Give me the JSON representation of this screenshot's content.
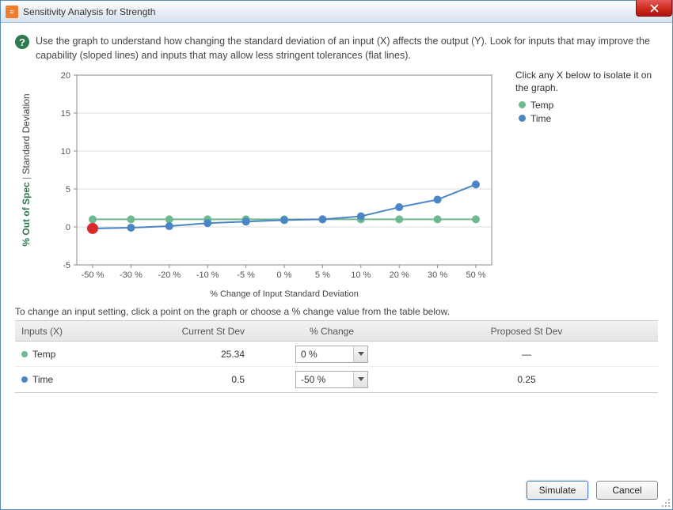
{
  "window": {
    "title": "Sensitivity Analysis for Strength"
  },
  "intro": "Use the graph to understand how changing the standard deviation of an input (X) affects the output (Y).  Look for inputs that may improve the capability (sloped lines) and inputs that may allow less stringent tolerances (flat lines).",
  "chart": {
    "type": "line",
    "x_categories": [
      "-50 %",
      "-30 %",
      "-20 %",
      "-10 %",
      "-5 %",
      "0 %",
      "5 %",
      "10 %",
      "20 %",
      "30 %",
      "50 %"
    ],
    "x_label": "% Change of Input Standard Deviation",
    "y_label_primary": "Standard Deviation",
    "y_label_secondary": "% Out of Spec",
    "ylim": [
      -5,
      20
    ],
    "ytick_step": 5,
    "series": [
      {
        "name": "Temp",
        "color": "#6fb98f",
        "marker_radius": 5,
        "values": [
          1.0,
          1.0,
          1.0,
          1.0,
          1.0,
          1.0,
          1.0,
          1.0,
          1.0,
          1.0,
          1.0
        ]
      },
      {
        "name": "Time",
        "color": "#4a86c5",
        "marker_radius": 5,
        "values": [
          -0.2,
          -0.1,
          0.1,
          0.5,
          0.7,
          0.9,
          1.0,
          1.4,
          2.6,
          3.6,
          5.6
        ]
      }
    ],
    "highlight": {
      "series": "Time",
      "index": 0,
      "color": "#d92b2b",
      "radius": 7
    },
    "background_color": "#ffffff",
    "grid_color": "#dddddd",
    "axis_color": "#888888",
    "tick_fontsize": 11,
    "label_fontsize": 12
  },
  "legend": {
    "title": "Click any X below to isolate it on the graph.",
    "items": [
      {
        "label": "Temp",
        "color": "#6fb98f"
      },
      {
        "label": "Time",
        "color": "#4a86c5"
      }
    ]
  },
  "table": {
    "intro": "To change an input setting, click a point on the graph or choose a % change value from the table below.",
    "columns": [
      "Inputs (X)",
      "Current St Dev",
      "% Change",
      "Proposed St Dev"
    ],
    "rows": [
      {
        "dot_color": "#6fb98f",
        "name": "Temp",
        "current": "25.34",
        "change": "0 %",
        "proposed": "—"
      },
      {
        "dot_color": "#4a86c5",
        "name": "Time",
        "current": "0.5",
        "change": "-50 %",
        "proposed": "0.25"
      }
    ]
  },
  "buttons": {
    "simulate": "Simulate",
    "cancel": "Cancel"
  }
}
